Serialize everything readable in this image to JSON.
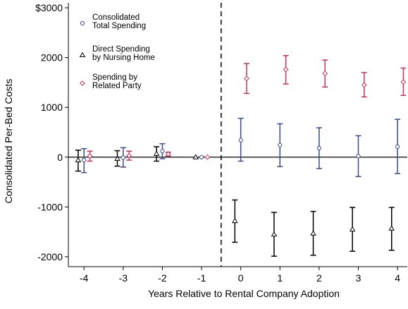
{
  "chart_data": {
    "type": "scatter",
    "xlabel": "Years Relative to Rental Company Adoption",
    "ylabel": "Consolidated Per-Bed Costs",
    "xlim": [
      -4.4,
      4.25
    ],
    "ylim": [
      -2200,
      3100
    ],
    "x_ticks": [
      -4,
      -3,
      -2,
      -1,
      0,
      1,
      2,
      3,
      4
    ],
    "y_ticks": [
      -2000,
      -1000,
      0,
      1000,
      2000,
      3000
    ],
    "y_tick_labels": [
      "-2000",
      "-1000",
      "0",
      "1000",
      "2000",
      "$3000"
    ],
    "x_tick_labels": [
      "-4",
      "-3",
      "-2",
      "-1",
      "0",
      "1",
      "2",
      "3",
      "4"
    ],
    "reference_line_x": -0.5,
    "reference_line_y": 0,
    "legend_position": "top-left",
    "series": [
      {
        "name": "Consolidated Total Spending",
        "marker": "circle",
        "color": "#3b4a8c",
        "offset": 0,
        "points": [
          {
            "x": -4,
            "y": -60,
            "lo": -310,
            "hi": 170
          },
          {
            "x": -3,
            "y": -10,
            "lo": -200,
            "hi": 190
          },
          {
            "x": -2,
            "y": 120,
            "lo": -30,
            "hi": 270
          },
          {
            "x": -1,
            "y": 0,
            "lo": 0,
            "hi": 0
          },
          {
            "x": 0,
            "y": 340,
            "lo": -80,
            "hi": 780
          },
          {
            "x": 1,
            "y": 240,
            "lo": -190,
            "hi": 670
          },
          {
            "x": 2,
            "y": 180,
            "lo": -230,
            "hi": 590
          },
          {
            "x": 3,
            "y": 20,
            "lo": -390,
            "hi": 430
          },
          {
            "x": 4,
            "y": 210,
            "lo": -330,
            "hi": 760
          }
        ]
      },
      {
        "name": "Direct Spending by Nursing Home",
        "marker": "triangle",
        "color": "#000000",
        "offset": -0.15,
        "points": [
          {
            "x": -4,
            "y": -60,
            "lo": -280,
            "hi": 140
          },
          {
            "x": -3,
            "y": -30,
            "lo": -180,
            "hi": 130
          },
          {
            "x": -2,
            "y": 70,
            "lo": -80,
            "hi": 210
          },
          {
            "x": -1,
            "y": 0,
            "lo": 0,
            "hi": 0
          },
          {
            "x": 0,
            "y": -1280,
            "lo": -1710,
            "hi": -860
          },
          {
            "x": 1,
            "y": -1550,
            "lo": -1990,
            "hi": -1110
          },
          {
            "x": 2,
            "y": -1530,
            "lo": -1970,
            "hi": -1090
          },
          {
            "x": 3,
            "y": -1450,
            "lo": -1890,
            "hi": -1010
          },
          {
            "x": 4,
            "y": -1430,
            "lo": -1870,
            "hi": -1010
          }
        ]
      },
      {
        "name": "Spending by Related Party",
        "marker": "diamond",
        "color": "#c8325a",
        "offset": 0.15,
        "points": [
          {
            "x": -4,
            "y": 20,
            "lo": -80,
            "hi": 120
          },
          {
            "x": -3,
            "y": 30,
            "lo": -60,
            "hi": 120
          },
          {
            "x": -2,
            "y": 60,
            "lo": 20,
            "hi": 100
          },
          {
            "x": -1,
            "y": 0,
            "lo": 0,
            "hi": 0
          },
          {
            "x": 0,
            "y": 1580,
            "lo": 1280,
            "hi": 1880
          },
          {
            "x": 1,
            "y": 1760,
            "lo": 1470,
            "hi": 2040
          },
          {
            "x": 2,
            "y": 1680,
            "lo": 1410,
            "hi": 1950
          },
          {
            "x": 3,
            "y": 1450,
            "lo": 1210,
            "hi": 1700
          },
          {
            "x": 4,
            "y": 1510,
            "lo": 1240,
            "hi": 1790
          }
        ]
      }
    ]
  }
}
